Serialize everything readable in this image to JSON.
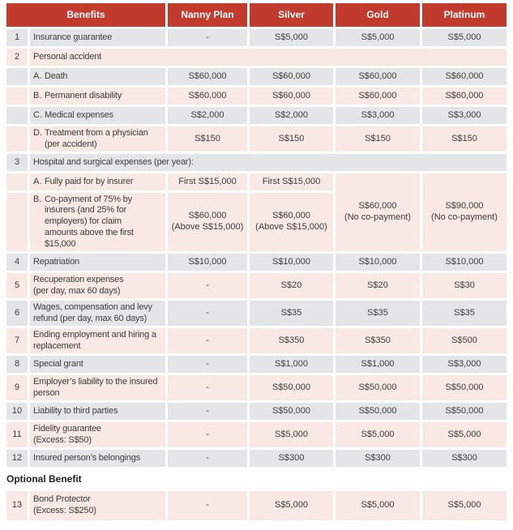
{
  "header": {
    "benefits": "Benefits",
    "nanny_plan": "Nanny Plan",
    "silver": "Silver",
    "gold": "Gold",
    "platinum": "Platinum"
  },
  "rows": {
    "r1": {
      "num": "1",
      "benefit": "Insurance guarantee",
      "nanny_plan": "-",
      "silver": "S$5,000",
      "gold": "S$5,000",
      "platinum": "S$5,000"
    },
    "r2": {
      "num": "2",
      "benefit": "Personal accident"
    },
    "r2a": {
      "letter": "A.",
      "benefit": "Death",
      "nanny_plan": "S$60,000",
      "silver": "S$60,000",
      "gold": "S$60,000",
      "platinum": "S$60,000"
    },
    "r2b": {
      "letter": "B.",
      "benefit": "Permanent disability",
      "nanny_plan": "S$60,000",
      "silver": "S$60,000",
      "gold": "S$60,000",
      "platinum": "S$60,000"
    },
    "r2c": {
      "letter": "C.",
      "benefit": "Medical expenses",
      "nanny_plan": "S$2,000",
      "silver": "S$2,000",
      "gold": "S$3,000",
      "platinum": "S$3,000"
    },
    "r2d": {
      "letter": "D.",
      "benefit": "Treatment from a physician\n(per accident)",
      "nanny_plan": "S$150",
      "silver": "S$150",
      "gold": "S$150",
      "platinum": "S$150"
    },
    "r3": {
      "num": "3",
      "benefit": "Hospital and surgical expenses (per year):"
    },
    "r3a": {
      "letter": "A.",
      "benefit": "Fully paid for by insurer",
      "nanny_plan": "First S$15,000",
      "silver": "First S$15,000"
    },
    "r3b": {
      "letter": "B.",
      "benefit": "Co-payment of 75% by\ninsurers (and 25% for\nemployers) for claim\namounts above the first\n$15,000",
      "nanny_plan": "S$60,000\n(Above S$15,000)",
      "silver": "S$60,000\n(Above S$15,000)"
    },
    "r3span": {
      "gold": "S$60,000\n(No co-payment)",
      "platinum": "S$90,000\n(No co-payment)"
    },
    "r4": {
      "num": "4",
      "benefit": "Repatriation",
      "nanny_plan": "S$10,000",
      "silver": "S$10,000",
      "gold": "S$10,000",
      "platinum": "S$10,000"
    },
    "r5": {
      "num": "5",
      "benefit": "Recuperation expenses\n(per day, max 60 days)",
      "nanny_plan": "-",
      "silver": "S$20",
      "gold": "S$20",
      "platinum": "S$30"
    },
    "r6": {
      "num": "6",
      "benefit": "Wages, compensation and levy\nrefund (per day, max 60 days)",
      "nanny_plan": "-",
      "silver": "S$35",
      "gold": "S$35",
      "platinum": "S$35"
    },
    "r7": {
      "num": "7",
      "benefit": "Ending employment and hiring a\nreplacement",
      "nanny_plan": "-",
      "silver": "S$350",
      "gold": "S$350",
      "platinum": "S$500"
    },
    "r8": {
      "num": "8",
      "benefit": "Special grant",
      "nanny_plan": "-",
      "silver": "S$1,000",
      "gold": "S$1,000",
      "platinum": "S$3,000"
    },
    "r9": {
      "num": "9",
      "benefit": "Employer’s liability to the insured\nperson",
      "nanny_plan": "-",
      "silver": "S$50,000",
      "gold": "S$50,000",
      "platinum": "S$50,000"
    },
    "r10": {
      "num": "10",
      "benefit": "Liability to third parties",
      "nanny_plan": "-",
      "silver": "S$50,000",
      "gold": "S$50,000",
      "platinum": "S$50,000"
    },
    "r11": {
      "num": "11",
      "benefit": "Fidelity guarantee\n(Excess: S$50)",
      "nanny_plan": "-",
      "silver": "S$5,000",
      "gold": "S$5,000",
      "platinum": "S$5,000"
    },
    "r12": {
      "num": "12",
      "benefit": "Insured person’s belongings",
      "nanny_plan": "-",
      "silver": "S$300",
      "gold": "S$300",
      "platinum": "S$300"
    },
    "r13": {
      "num": "13",
      "benefit": "Bond Protector\n(Excess: S$250)",
      "nanny_plan": "-",
      "silver": "S$5,000",
      "gold": "S$5,000",
      "platinum": "S$5,000"
    }
  },
  "optional": {
    "label": "Optional Benefit"
  },
  "colors": {
    "header_bg": "#C23A2C",
    "header_text": "#FFFFFF",
    "row_gray": "#E4E5E6",
    "row_pink": "#F9E8E4",
    "text": "#3D3D3D",
    "page_bg": "#FFFFFF"
  }
}
